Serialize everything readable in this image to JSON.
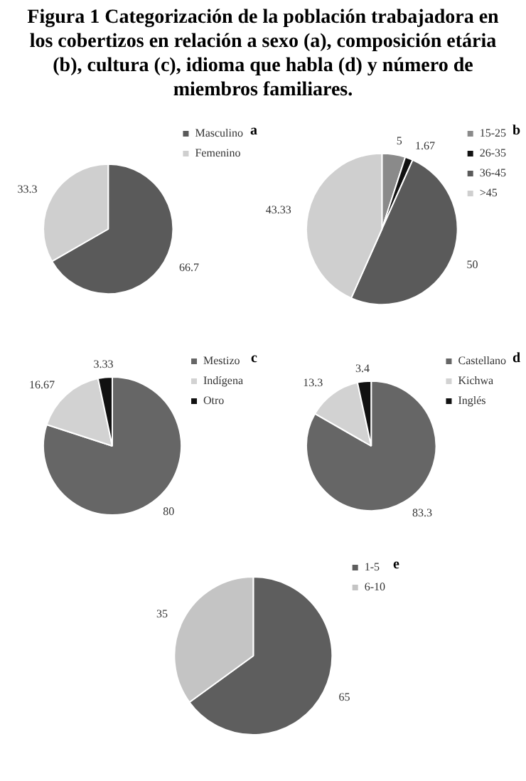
{
  "chart_data": [
    {
      "type": "pie",
      "title": "Figura 1 Categorización de la población trabajadora en los cobertizos en relación a sexo (a), composición etária (b), cultura (c), idioma que habla (d) y número de miembros familiares.",
      "subtitle": "a",
      "categories": [
        "Masculino",
        "Femenino"
      ],
      "values": [
        66.7,
        33.3
      ],
      "colors": [
        "#5a5a5a",
        "#cfcfcf"
      ],
      "data_labels": true,
      "legend": "right"
    },
    {
      "type": "pie",
      "title": "b",
      "categories": [
        "15-25",
        "26-35",
        "36-45",
        ">45"
      ],
      "values": [
        5,
        1.67,
        50,
        43.33
      ],
      "colors": [
        "#8a8a8a",
        "#111111",
        "#5a5a5a",
        "#cfcfcf"
      ],
      "data_labels": true,
      "legend": "right"
    },
    {
      "type": "pie",
      "title": "c",
      "categories": [
        "Mestizo",
        "Indígena",
        "Otro"
      ],
      "values": [
        80,
        16.67,
        3.33
      ],
      "colors": [
        "#666666",
        "#d2d2d2",
        "#111111"
      ],
      "data_labels": true,
      "legend": "right"
    },
    {
      "type": "pie",
      "title": "d",
      "categories": [
        "Castellano",
        "Kichwa",
        "Inglés"
      ],
      "values": [
        83.3,
        13.3,
        3.4
      ],
      "colors": [
        "#666666",
        "#d2d2d2",
        "#111111"
      ],
      "data_labels": true,
      "legend": "right"
    },
    {
      "type": "pie",
      "title": "e",
      "categories": [
        "1-5",
        "6-10"
      ],
      "values": [
        65,
        35
      ],
      "colors": [
        "#5e5e5e",
        "#c4c4c4"
      ],
      "data_labels": true,
      "legend": "right"
    }
  ]
}
